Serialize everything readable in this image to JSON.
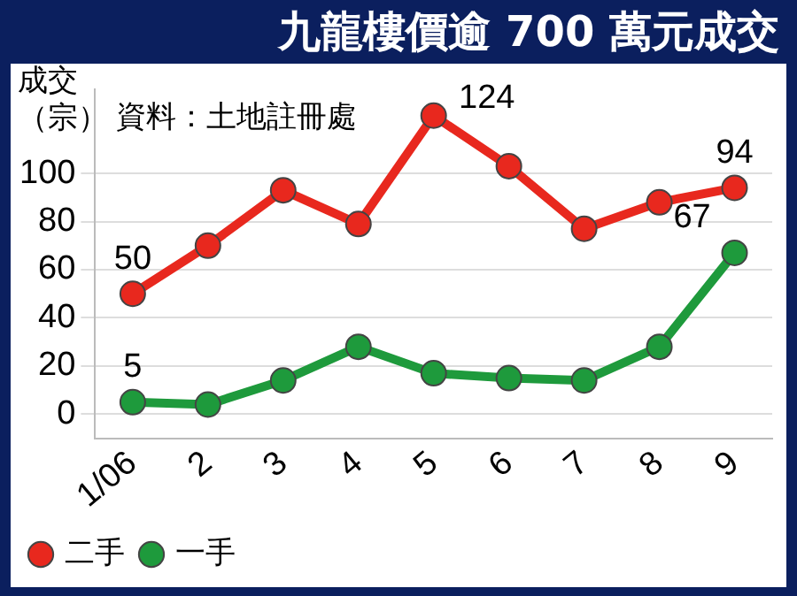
{
  "chart_data": {
    "type": "line",
    "title": "九龍樓價逾 700 萬元成交",
    "ylabel": "成交（宗）",
    "annotations": [
      "資料：土地註冊處"
    ],
    "categories": [
      "1/06",
      "2",
      "3",
      "4",
      "5",
      "6",
      "7",
      "8",
      "9"
    ],
    "series": [
      {
        "name": "二手",
        "color": "#e8281e",
        "values": [
          50,
          70,
          93,
          79,
          124,
          103,
          77,
          88,
          94
        ],
        "value_labels": [
          "50",
          null,
          null,
          null,
          "124",
          null,
          null,
          null,
          "94"
        ]
      },
      {
        "name": "一手",
        "color": "#1e9a3c",
        "values": [
          5,
          4,
          14,
          28,
          17,
          15,
          14,
          28,
          67
        ],
        "value_labels": [
          "5",
          null,
          null,
          null,
          null,
          null,
          null,
          null,
          "67"
        ]
      }
    ],
    "ylim": [
      -10,
      135
    ],
    "yticks": [
      0,
      20,
      40,
      60,
      80,
      100
    ],
    "grid": "y",
    "legend": "bottom",
    "marker": "circle",
    "line_style": "solid"
  }
}
